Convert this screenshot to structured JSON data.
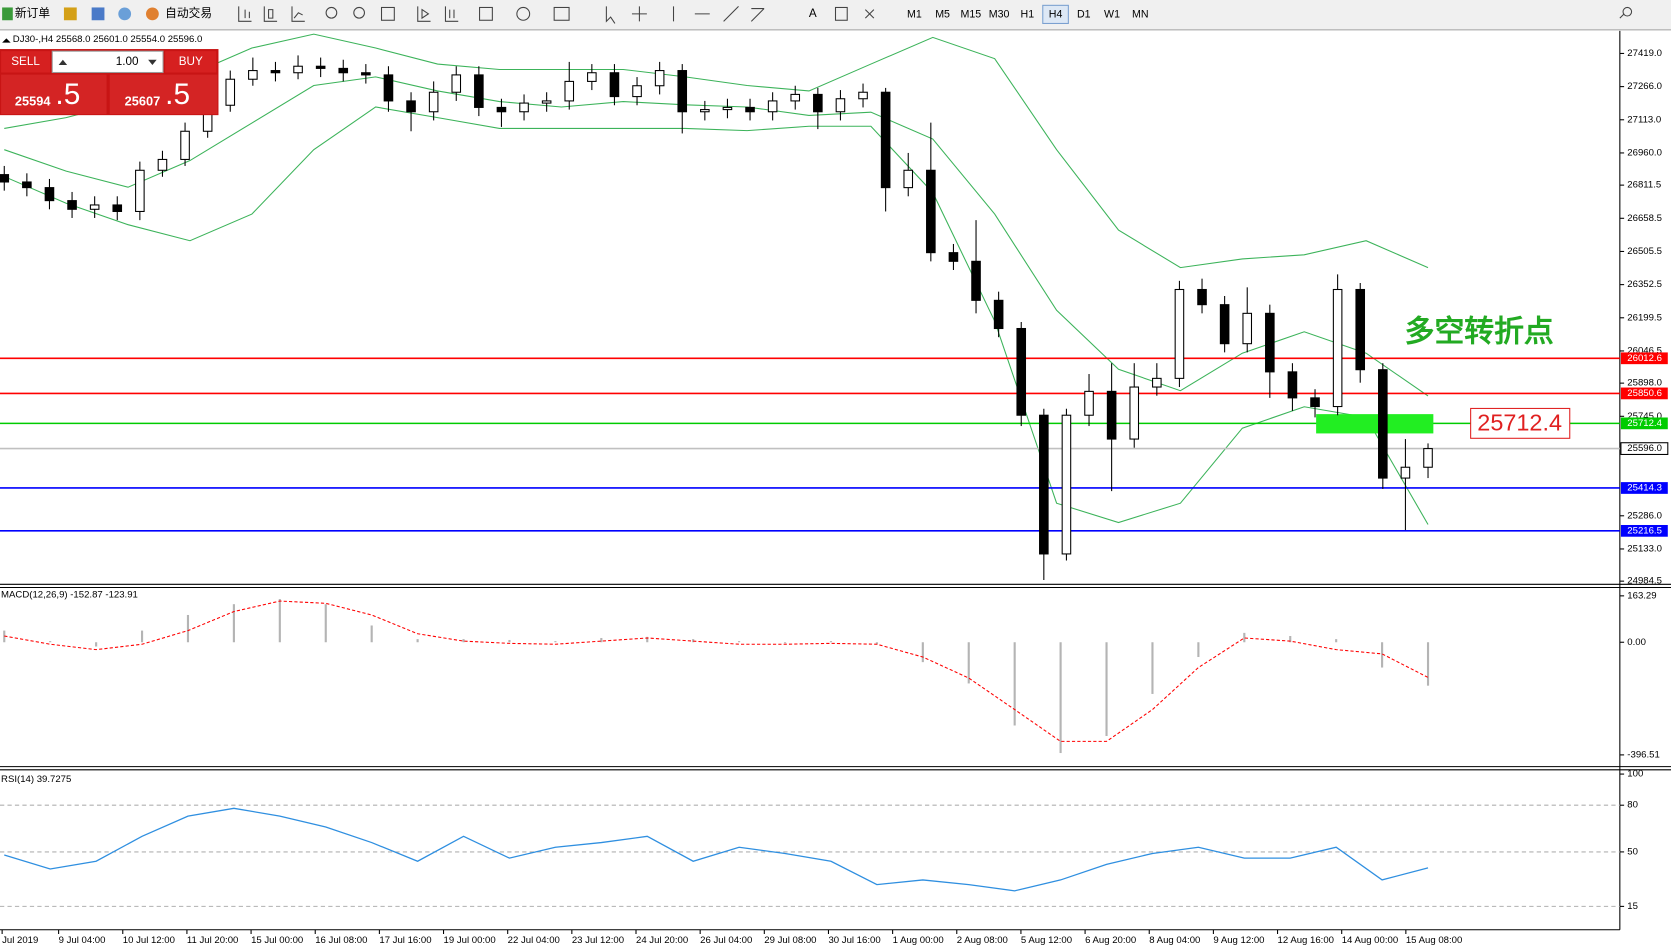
{
  "toolbar": {
    "new_order": "新订单",
    "auto_trading": "自动交易",
    "timeframes": [
      "M1",
      "M5",
      "M15",
      "M30",
      "H1",
      "H4",
      "D1",
      "W1",
      "MN"
    ]
  },
  "trade_panel": {
    "sell": "SELL",
    "buy": "BUY",
    "lot": "1.00",
    "bid": "25594",
    "bid_frac": ".5",
    "ask": "25607",
    "ask_frac": ".5"
  },
  "chart_data": [
    {
      "type": "candlestick",
      "title": "DJ30-,H4  25568.0 25601.0 25554.0 25596.0",
      "x_labels": [
        "Jul 2019",
        "9 Jul 04:00",
        "10 Jul 12:00",
        "11 Jul 20:00",
        "15 Jul 00:00",
        "16 Jul 08:00",
        "17 Jul 16:00",
        "19 Jul 00:00",
        "22 Jul 04:00",
        "23 Jul 12:00",
        "24 Jul 20:00",
        "26 Jul 04:00",
        "29 Jul 08:00",
        "30 Jul 16:00",
        "1 Aug 00:00",
        "2 Aug 08:00",
        "5 Aug 12:00",
        "6 Aug 20:00",
        "8 Aug 04:00",
        "9 Aug 12:00",
        "12 Aug 16:00",
        "14 Aug 00:00",
        "15 Aug 08:00"
      ],
      "open": [
        26860,
        26826,
        26800,
        26740,
        26700,
        26720,
        26690,
        26880,
        26930,
        27060,
        27180,
        27300,
        27340,
        27330,
        27360,
        27350,
        27330,
        27320,
        27200,
        27150,
        27240,
        27320,
        27170,
        27150,
        27190,
        27200,
        27290,
        27330,
        27220,
        27270,
        27340,
        27150,
        27160,
        27170,
        27150,
        27200,
        27230,
        27150,
        27210,
        27240,
        26800,
        26880,
        26500,
        26460,
        26280,
        26150,
        25750,
        25110,
        25750,
        25860,
        25640,
        25880,
        25920,
        26330,
        26260,
        26080,
        26220,
        25950,
        25830,
        25790,
        26330,
        25960,
        25460,
        25510
      ],
      "high": [
        26900,
        26866,
        26840,
        26780,
        26760,
        26760,
        26920,
        26970,
        27100,
        27220,
        27340,
        27400,
        27380,
        27410,
        27400,
        27390,
        27370,
        27360,
        27240,
        27290,
        27360,
        27360,
        27210,
        27230,
        27240,
        27380,
        27370,
        27370,
        27310,
        27380,
        27370,
        27200,
        27210,
        27210,
        27240,
        27270,
        27260,
        27250,
        27280,
        27260,
        26960,
        27100,
        26540,
        26650,
        26320,
        26180,
        25780,
        25780,
        25940,
        25990,
        25990,
        25990,
        26370,
        26380,
        26300,
        26340,
        26260,
        25990,
        25870,
        26400,
        26360,
        25990,
        25640,
        25620
      ],
      "low": [
        26786,
        26760,
        26700,
        26660,
        26660,
        26650,
        26650,
        26850,
        26900,
        27030,
        27150,
        27270,
        27290,
        27300,
        27310,
        27290,
        27280,
        27150,
        27060,
        27110,
        27200,
        27130,
        27080,
        27110,
        27150,
        27160,
        27250,
        27180,
        27180,
        27230,
        27050,
        27110,
        27120,
        27110,
        27110,
        27160,
        27070,
        27110,
        27170,
        26690,
        26760,
        26460,
        26420,
        26220,
        26110,
        25700,
        24990,
        25080,
        25700,
        25400,
        25600,
        25840,
        25880,
        26220,
        26040,
        26040,
        25830,
        25770,
        25740,
        25750,
        25900,
        25410,
        25220,
        25460
      ],
      "close": [
        26826,
        26800,
        26740,
        26700,
        26720,
        26690,
        26880,
        26930,
        27060,
        27180,
        27300,
        27340,
        27330,
        27360,
        27350,
        27330,
        27320,
        27200,
        27150,
        27240,
        27320,
        27170,
        27150,
        27190,
        27200,
        27290,
        27330,
        27220,
        27270,
        27340,
        27150,
        27160,
        27170,
        27150,
        27200,
        27230,
        27150,
        27210,
        27240,
        26800,
        26880,
        26500,
        26460,
        26280,
        26150,
        25750,
        25110,
        25750,
        25860,
        25640,
        25880,
        25920,
        26330,
        26260,
        26080,
        26220,
        25950,
        25830,
        25790,
        26330,
        25960,
        25460,
        25510,
        25596
      ],
      "bands": {
        "color": "#3cb35a",
        "upper": [
          27073,
          27123,
          27197,
          27320,
          27444,
          27508,
          27444,
          27370,
          27345,
          27345,
          27345,
          27311,
          27271,
          27246,
          27370,
          27493,
          27395,
          26975,
          26604,
          26431,
          26471,
          26490,
          26555,
          26431
        ],
        "middle": [
          26975,
          26876,
          26802,
          26925,
          27098,
          27271,
          27311,
          27246,
          27197,
          27172,
          27197,
          27182,
          27172,
          27133,
          27148,
          27024,
          26678,
          26234,
          25962,
          25863,
          26036,
          26135,
          26036,
          25839
        ],
        "lower": [
          26851,
          26728,
          26629,
          26555,
          26678,
          26975,
          27172,
          27123,
          27073,
          27073,
          27073,
          27073,
          27063,
          27083,
          27083,
          26777,
          26184,
          25344,
          25255,
          25344,
          25690,
          25789,
          25740,
          25246
        ]
      },
      "levels": [
        {
          "value": 26012.6,
          "label": "26012.6",
          "color": "#ff0000"
        },
        {
          "value": 25850.6,
          "label": "25850.6",
          "color": "#ff0000"
        },
        {
          "value": 25712.4,
          "label": "25712.4",
          "color": "#00cc00"
        },
        {
          "value": 25596.0,
          "label": "25596.0",
          "color": "#c0c0c0"
        },
        {
          "value": 25414.3,
          "label": "25414.3",
          "color": "#0000ff"
        },
        {
          "value": 25216.5,
          "label": "25216.5",
          "color": "#0000ff"
        }
      ],
      "zone": [
        25666,
        25755
      ],
      "annotation": "多空转折点",
      "ylim": [
        24970,
        27518
      ],
      "yticks": [
        {
          "value": 27419.0,
          "label": "27419.0"
        },
        {
          "value": 27266.0,
          "label": "27266.0"
        },
        {
          "value": 27113.0,
          "label": "27113.0"
        },
        {
          "value": 26960.0,
          "label": "26960.0"
        },
        {
          "value": 26811.5,
          "label": "26811.5"
        },
        {
          "value": 26658.5,
          "label": "26658.5"
        },
        {
          "value": 26505.5,
          "label": "26505.5"
        },
        {
          "value": 26352.5,
          "label": "26352.5"
        },
        {
          "value": 26199.5,
          "label": "26199.5"
        },
        {
          "value": 26046.5,
          "label": "26046.5"
        },
        {
          "value": 25898.0,
          "label": "25898.0"
        },
        {
          "value": 25745.0,
          "label": "25745.0"
        },
        {
          "value": 25286.0,
          "label": "25286.0"
        },
        {
          "value": 25133.0,
          "label": "25133.0"
        },
        {
          "value": 24984.5,
          "label": "24984.5"
        }
      ]
    },
    {
      "type": "macd",
      "title": "MACD(12,26,9) -152.87 -123.91",
      "ylim": [
        -434,
        189
      ],
      "yticks": [
        {
          "value": 163.29,
          "label": "163.29"
        },
        {
          "value": 0.0,
          "label": "0.00"
        },
        {
          "value": -396.51,
          "label": "-396.51"
        }
      ],
      "series": [
        {
          "name": "MACD",
          "color": "#b4b4b4",
          "values": [
            41,
            4,
            -15,
            41,
            96,
            134,
            152,
            134,
            59,
            11,
            11,
            8,
            4,
            15,
            19,
            11,
            4,
            0,
            4,
            -7,
            -70,
            -145,
            -293,
            -390,
            -330,
            -182,
            -52,
            33,
            22,
            11,
            -89,
            -152.87
          ]
        },
        {
          "name": "Signal",
          "color": "#ff0000",
          "values": [
            22,
            -7,
            -26,
            -7,
            41,
            108,
            145,
            137,
            96,
            30,
            4,
            -4,
            -7,
            4,
            15,
            4,
            -7,
            -7,
            -4,
            -7,
            -52,
            -126,
            -237,
            -349,
            -349,
            -237,
            -89,
            15,
            4,
            -26,
            -41,
            -123.91
          ]
        }
      ]
    },
    {
      "type": "line",
      "title": "RSI(14) 39.7275",
      "ylim": [
        0,
        100
      ],
      "yticks": [
        15,
        50,
        80,
        100
      ],
      "color": "#2f8fe0",
      "values": [
        48,
        39,
        44,
        60,
        73,
        78,
        73,
        66,
        56,
        44,
        60,
        46,
        53,
        56,
        60,
        44,
        53,
        49,
        44,
        29,
        32,
        29,
        25,
        32,
        42,
        49,
        53,
        46,
        46,
        53,
        32,
        39.7275
      ]
    }
  ]
}
